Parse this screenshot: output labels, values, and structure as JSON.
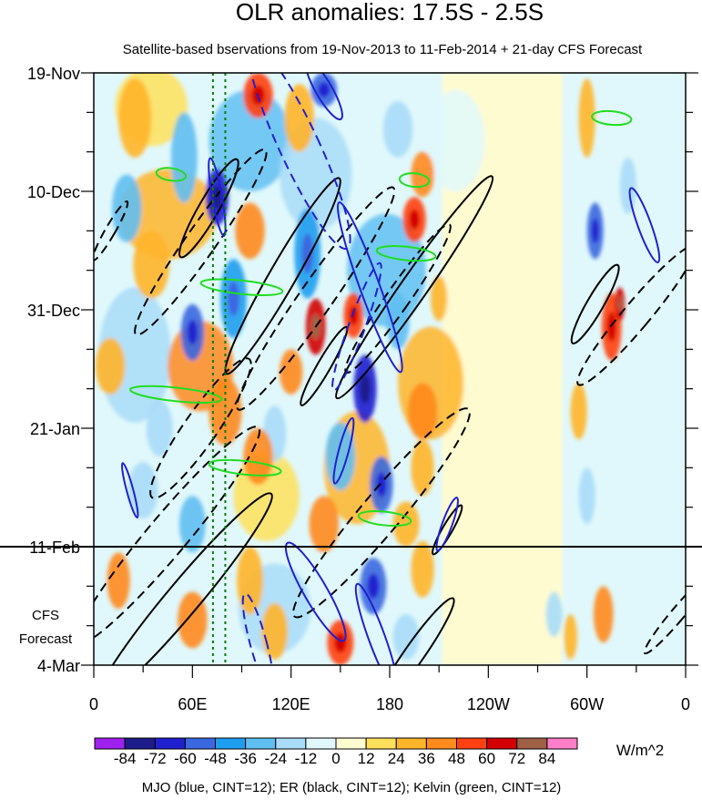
{
  "chart_data": {
    "type": "heatmap",
    "title": "OLR anomalies: 17.5S - 2.5S",
    "subtitle": "Satellite-based bservations from 19-Nov-2013 to 11-Feb-2014 + 21-day CFS Forecast",
    "x_ticks": [
      "0",
      "60E",
      "120E",
      "180",
      "120W",
      "60W",
      "0"
    ],
    "x_values": [
      0,
      60,
      120,
      180,
      240,
      300,
      360
    ],
    "xlim": [
      0,
      360
    ],
    "y_ticks": [
      "19-Nov",
      "10-Dec",
      "31-Dec",
      "21-Jan",
      "11-Feb",
      "4-Mar"
    ],
    "y_values": [
      0,
      21,
      42,
      63,
      84,
      105
    ],
    "ylim": [
      0,
      105
    ],
    "annotations": {
      "forecast_line1": "CFS",
      "forecast_line2": "Forecast"
    },
    "forecast_start_day": 84,
    "reference_lon_lines": [
      72.5,
      80
    ],
    "colorbar": {
      "labels": [
        "-84",
        "-72",
        "-60",
        "-48",
        "-36",
        "-24",
        "-12",
        "0",
        "12",
        "24",
        "36",
        "48",
        "60",
        "72",
        "84"
      ],
      "colors": [
        "#a020f0",
        "#1c1c8a",
        "#2020d0",
        "#3a68e0",
        "#1e9ef0",
        "#60bff2",
        "#a9dcf8",
        "#e0f8fb",
        "#fffbd0",
        "#ffe05a",
        "#ffb52a",
        "#ff8a1e",
        "#ff4010",
        "#d40000",
        "#a06046",
        "#ff7ec8"
      ],
      "units": "W/m^2"
    },
    "legend_text": "MJO (blue, CINT=12); ER (black, CINT=12); Kelvin (green, CINT=12)",
    "contour_colors": {
      "MJO": "#2020d0",
      "ER": "#000000",
      "Kelvin": "#22dd22"
    },
    "filaments": [
      {
        "lon": 35,
        "day": 6,
        "w": 22,
        "h": 7,
        "v": 12
      },
      {
        "lon": 95,
        "day": 12,
        "w": 25,
        "h": 9,
        "v": -36
      },
      {
        "lon": 45,
        "day": 25,
        "w": 30,
        "h": 8,
        "v": 24
      },
      {
        "lon": 25,
        "day": 50,
        "w": 22,
        "h": 12,
        "v": -24
      },
      {
        "lon": 105,
        "day": 75,
        "w": 20,
        "h": 8,
        "v": 12
      },
      {
        "lon": 135,
        "day": 18,
        "w": 22,
        "h": 10,
        "v": -24
      },
      {
        "lon": 65,
        "day": 52,
        "w": 20,
        "h": 8,
        "v": 36
      },
      {
        "lon": 178,
        "day": 35,
        "w": 24,
        "h": 10,
        "v": -36
      },
      {
        "lon": 205,
        "day": 55,
        "w": 20,
        "h": 10,
        "v": 24
      },
      {
        "lon": 220,
        "day": 12,
        "w": 18,
        "h": 9,
        "v": -12
      },
      {
        "lon": 160,
        "day": 70,
        "w": 20,
        "h": 10,
        "v": 24
      },
      {
        "lon": 110,
        "day": 95,
        "w": 22,
        "h": 8,
        "v": -24
      }
    ],
    "blobs": [
      {
        "lon": 25,
        "day": 8,
        "w": 20,
        "h": 14,
        "v": 24
      },
      {
        "lon": 55,
        "day": 15,
        "w": 16,
        "h": 16,
        "v": -36
      },
      {
        "lon": 75,
        "day": 22,
        "w": 14,
        "h": 10,
        "v": -72
      },
      {
        "lon": 100,
        "day": 4,
        "w": 18,
        "h": 8,
        "v": 48
      },
      {
        "lon": 125,
        "day": 8,
        "w": 18,
        "h": 12,
        "v": 24
      },
      {
        "lon": 140,
        "day": 3,
        "w": 16,
        "h": 6,
        "v": -60
      },
      {
        "lon": 185,
        "day": 10,
        "w": 18,
        "h": 10,
        "v": -24
      },
      {
        "lon": 200,
        "day": 18,
        "w": 14,
        "h": 8,
        "v": 36
      },
      {
        "lon": 20,
        "day": 24,
        "w": 18,
        "h": 12,
        "v": -36
      },
      {
        "lon": 95,
        "day": 28,
        "w": 18,
        "h": 10,
        "v": 36
      },
      {
        "lon": 130,
        "day": 32,
        "w": 16,
        "h": 16,
        "v": -48
      },
      {
        "lon": 195,
        "day": 26,
        "w": 14,
        "h": 8,
        "v": 48
      },
      {
        "lon": 35,
        "day": 34,
        "w": 22,
        "h": 12,
        "v": 24
      },
      {
        "lon": 85,
        "day": 40,
        "w": 16,
        "h": 14,
        "v": -48
      },
      {
        "lon": 135,
        "day": 45,
        "w": 12,
        "h": 10,
        "v": 60
      },
      {
        "lon": 158,
        "day": 43,
        "w": 12,
        "h": 8,
        "v": 48
      },
      {
        "lon": 185,
        "day": 44,
        "w": 14,
        "h": 10,
        "v": -36
      },
      {
        "lon": 60,
        "day": 46,
        "w": 14,
        "h": 10,
        "v": -60
      },
      {
        "lon": 10,
        "day": 52,
        "w": 18,
        "h": 10,
        "v": 24
      },
      {
        "lon": 120,
        "day": 53,
        "w": 14,
        "h": 8,
        "v": 36
      },
      {
        "lon": 165,
        "day": 56,
        "w": 14,
        "h": 12,
        "v": -72
      },
      {
        "lon": 200,
        "day": 60,
        "w": 18,
        "h": 10,
        "v": 36
      },
      {
        "lon": 80,
        "day": 60,
        "w": 20,
        "h": 12,
        "v": 36
      },
      {
        "lon": 40,
        "day": 63,
        "w": 16,
        "h": 10,
        "v": -24
      },
      {
        "lon": 110,
        "day": 64,
        "w": 14,
        "h": 10,
        "v": -24
      },
      {
        "lon": 150,
        "day": 68,
        "w": 18,
        "h": 12,
        "v": -36
      },
      {
        "lon": 175,
        "day": 73,
        "w": 14,
        "h": 10,
        "v": -60
      },
      {
        "lon": 100,
        "day": 68,
        "w": 18,
        "h": 10,
        "v": 36
      },
      {
        "lon": 30,
        "day": 74,
        "w": 18,
        "h": 10,
        "v": -24
      },
      {
        "lon": 200,
        "day": 70,
        "w": 14,
        "h": 10,
        "v": 24
      },
      {
        "lon": 60,
        "day": 80,
        "w": 16,
        "h": 10,
        "v": -36
      },
      {
        "lon": 140,
        "day": 80,
        "w": 18,
        "h": 10,
        "v": 36
      },
      {
        "lon": 190,
        "day": 80,
        "w": 16,
        "h": 8,
        "v": 24
      },
      {
        "lon": 15,
        "day": 90,
        "w": 14,
        "h": 10,
        "v": 36
      },
      {
        "lon": 95,
        "day": 90,
        "w": 16,
        "h": 12,
        "v": 24
      },
      {
        "lon": 170,
        "day": 91,
        "w": 16,
        "h": 10,
        "v": -60
      },
      {
        "lon": 200,
        "day": 88,
        "w": 14,
        "h": 10,
        "v": 24
      },
      {
        "lon": 60,
        "day": 97,
        "w": 18,
        "h": 10,
        "v": 36
      },
      {
        "lon": 110,
        "day": 99,
        "w": 16,
        "h": 10,
        "v": 24
      },
      {
        "lon": 150,
        "day": 101,
        "w": 16,
        "h": 8,
        "v": 48
      },
      {
        "lon": 190,
        "day": 100,
        "w": 16,
        "h": 8,
        "v": -24
      },
      {
        "lon": 210,
        "day": 40,
        "w": 10,
        "h": 8,
        "v": 24
      },
      {
        "lon": 300,
        "day": 8,
        "w": 10,
        "h": 14,
        "v": 24
      },
      {
        "lon": 305,
        "day": 28,
        "w": 10,
        "h": 10,
        "v": -60
      },
      {
        "lon": 315,
        "day": 45,
        "w": 12,
        "h": 12,
        "v": 48
      },
      {
        "lon": 320,
        "day": 41,
        "w": 6,
        "h": 6,
        "v": 60
      },
      {
        "lon": 295,
        "day": 60,
        "w": 10,
        "h": 10,
        "v": 24
      },
      {
        "lon": 300,
        "day": 75,
        "w": 10,
        "h": 10,
        "v": -24
      },
      {
        "lon": 310,
        "day": 96,
        "w": 12,
        "h": 10,
        "v": 36
      },
      {
        "lon": 280,
        "day": 96,
        "w": 10,
        "h": 8,
        "v": -24
      },
      {
        "lon": 325,
        "day": 20,
        "w": 10,
        "h": 10,
        "v": -24
      },
      {
        "lon": 290,
        "day": 100,
        "w": 8,
        "h": 8,
        "v": 24
      }
    ],
    "mjo_contours": [
      {
        "lon": 140,
        "day": 3,
        "rx": 5,
        "ry": 6,
        "angle": -30,
        "dashed": false
      },
      {
        "lon": 125,
        "day": 13,
        "rx": 12,
        "ry": 20,
        "angle": -25,
        "dashed": true
      },
      {
        "lon": 75,
        "day": 22,
        "rx": 3,
        "ry": 7,
        "angle": -10,
        "dashed": false
      },
      {
        "lon": 168,
        "day": 38,
        "rx": 6,
        "ry": 16,
        "angle": -20,
        "dashed": false
      },
      {
        "lon": 160,
        "day": 45,
        "rx": 5,
        "ry": 12,
        "angle": 20,
        "dashed": true
      },
      {
        "lon": 152,
        "day": 67,
        "rx": 3,
        "ry": 6,
        "angle": 15,
        "dashed": false
      },
      {
        "lon": 22,
        "day": 74,
        "rx": 2,
        "ry": 5,
        "angle": -15,
        "dashed": false
      },
      {
        "lon": 335,
        "day": 27,
        "rx": 4,
        "ry": 7,
        "angle": -20,
        "dashed": false
      },
      {
        "lon": 135,
        "day": 92,
        "rx": 7,
        "ry": 10,
        "angle": -30,
        "dashed": false
      },
      {
        "lon": 172,
        "day": 100,
        "rx": 5,
        "ry": 10,
        "angle": -20,
        "dashed": false
      },
      {
        "lon": 100,
        "day": 101,
        "rx": 5,
        "ry": 9,
        "angle": -15,
        "dashed": true
      },
      {
        "lon": 215,
        "day": 80,
        "rx": 3,
        "ry": 5,
        "angle": 20,
        "dashed": false
      }
    ],
    "er_contours": [
      {
        "lon": 70,
        "day": 24,
        "rx": 6,
        "ry": 10,
        "angle": 30,
        "dashed": false
      },
      {
        "lon": 115,
        "day": 36,
        "rx": 8,
        "ry": 20,
        "angle": 30,
        "dashed": false
      },
      {
        "lon": 135,
        "day": 40,
        "rx": 10,
        "ry": 24,
        "angle": 35,
        "dashed": true
      },
      {
        "lon": 195,
        "day": 38,
        "rx": 8,
        "ry": 24,
        "angle": 35,
        "dashed": false
      },
      {
        "lon": 185,
        "day": 40,
        "rx": 7,
        "ry": 16,
        "angle": 35,
        "dashed": true
      },
      {
        "lon": 65,
        "day": 30,
        "rx": 9,
        "ry": 20,
        "angle": 35,
        "dashed": true
      },
      {
        "lon": 65,
        "day": 63,
        "rx": 10,
        "ry": 15,
        "angle": 35,
        "dashed": true
      },
      {
        "lon": 45,
        "day": 82,
        "rx": 12,
        "ry": 25,
        "angle": 40,
        "dashed": true
      },
      {
        "lon": 55,
        "day": 93,
        "rx": 10,
        "ry": 24,
        "angle": 40,
        "dashed": false
      },
      {
        "lon": 175,
        "day": 78,
        "rx": 12,
        "ry": 24,
        "angle": 40,
        "dashed": true
      },
      {
        "lon": 330,
        "day": 43,
        "rx": 8,
        "ry": 16,
        "angle": 40,
        "dashed": true
      },
      {
        "lon": 305,
        "day": 41,
        "rx": 5,
        "ry": 8,
        "angle": 30,
        "dashed": false
      },
      {
        "lon": 355,
        "day": 96,
        "rx": 4,
        "ry": 9,
        "angle": 40,
        "dashed": true
      },
      {
        "lon": 195,
        "day": 103,
        "rx": 6,
        "ry": 12,
        "angle": 35,
        "dashed": false
      },
      {
        "lon": 140,
        "day": 52,
        "rx": 4,
        "ry": 8,
        "angle": 30,
        "dashed": false
      },
      {
        "lon": 215,
        "day": 81,
        "rx": 3,
        "ry": 5,
        "angle": 30,
        "dashed": false
      },
      {
        "lon": 10,
        "day": 28,
        "rx": 3,
        "ry": 6,
        "angle": 30,
        "dashed": true
      }
    ],
    "kelvin_contours": [
      {
        "lon": 47,
        "day": 18,
        "rx": 9,
        "ry": 1.1,
        "angle": 8,
        "dashed": false
      },
      {
        "lon": 90,
        "day": 38,
        "rx": 25,
        "ry": 1.2,
        "angle": 6,
        "dashed": false
      },
      {
        "lon": 50,
        "day": 57,
        "rx": 28,
        "ry": 1.2,
        "angle": 6,
        "dashed": false
      },
      {
        "lon": 92,
        "day": 70,
        "rx": 22,
        "ry": 1.2,
        "angle": 6,
        "dashed": false
      },
      {
        "lon": 190,
        "day": 32,
        "rx": 18,
        "ry": 1.2,
        "angle": 6,
        "dashed": false
      },
      {
        "lon": 177,
        "day": 79,
        "rx": 16,
        "ry": 1.2,
        "angle": 6,
        "dashed": false
      },
      {
        "lon": 315,
        "day": 8,
        "rx": 12,
        "ry": 1.2,
        "angle": 5,
        "dashed": false
      },
      {
        "lon": 195,
        "day": 19,
        "rx": 9,
        "ry": 1.2,
        "angle": 5,
        "dashed": false
      }
    ]
  }
}
